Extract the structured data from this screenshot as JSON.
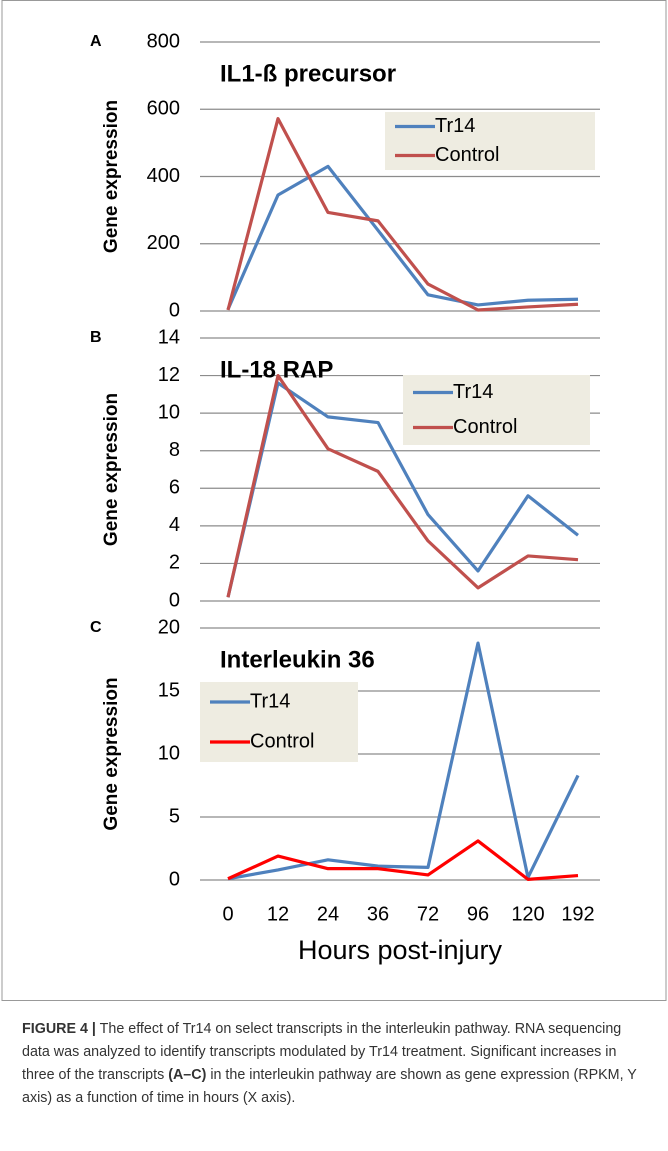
{
  "chart_data": [
    {
      "type": "line",
      "panel": "A",
      "title": "IL1-ß precursor",
      "y_label": "Gene expression",
      "ylim": [
        0,
        800
      ],
      "yticks": [
        0,
        200,
        400,
        600,
        800
      ],
      "grid": true,
      "legend": "upper right",
      "series": [
        {
          "name": "Tr14",
          "color": "#4f81bd",
          "values": [
            5,
            345,
            430,
            240,
            48,
            18,
            32,
            35
          ]
        },
        {
          "name": "Control",
          "color": "#c0504d",
          "values": [
            3,
            572,
            293,
            268,
            80,
            3,
            12,
            20
          ]
        }
      ]
    },
    {
      "type": "line",
      "panel": "B",
      "title": "IL-18 RAP",
      "y_label": "Gene expression",
      "ylim": [
        0,
        14
      ],
      "yticks": [
        0,
        2,
        4,
        6,
        8,
        10,
        12,
        14
      ],
      "grid": true,
      "legend": "upper right",
      "series": [
        {
          "name": "Tr14",
          "color": "#4f81bd",
          "values": [
            0.2,
            11.6,
            9.8,
            9.5,
            4.6,
            1.6,
            5.6,
            3.5
          ]
        },
        {
          "name": "Control",
          "color": "#c0504d",
          "values": [
            0.2,
            12.0,
            8.1,
            6.9,
            3.2,
            0.7,
            2.4,
            2.2
          ]
        }
      ]
    },
    {
      "type": "line",
      "panel": "C",
      "title": "Interleukin 36",
      "y_label": "Gene expression",
      "x_label": "Hours post-injury",
      "categories": [
        "0",
        "12",
        "24",
        "36",
        "72",
        "96",
        "120",
        "192"
      ],
      "ylim": [
        0,
        20
      ],
      "yticks": [
        0,
        5,
        10,
        15,
        20
      ],
      "grid": true,
      "legend": "upper left",
      "series": [
        {
          "name": "Tr14",
          "color": "#4f81bd",
          "values": [
            0.1,
            0.8,
            1.6,
            1.1,
            1.0,
            18.8,
            0.2,
            8.3
          ]
        },
        {
          "name": "Control",
          "color": "#ff0000",
          "values": [
            0.1,
            1.9,
            0.9,
            0.9,
            0.4,
            3.1,
            0.05,
            0.35
          ]
        }
      ]
    }
  ],
  "caption": {
    "label": "FIGURE 4 |",
    "text": [
      "The effect of Tr14 on select transcripts in the interleukin pathway. RNA sequencing data was analyzed to identify transcripts modulated by Tr14 treatment. Significant increases in three of the transcripts ",
      "(A–C)",
      " in the interleukin pathway are shown as gene expression (RPKM, Y axis) as a function of time in hours (X axis)."
    ]
  }
}
